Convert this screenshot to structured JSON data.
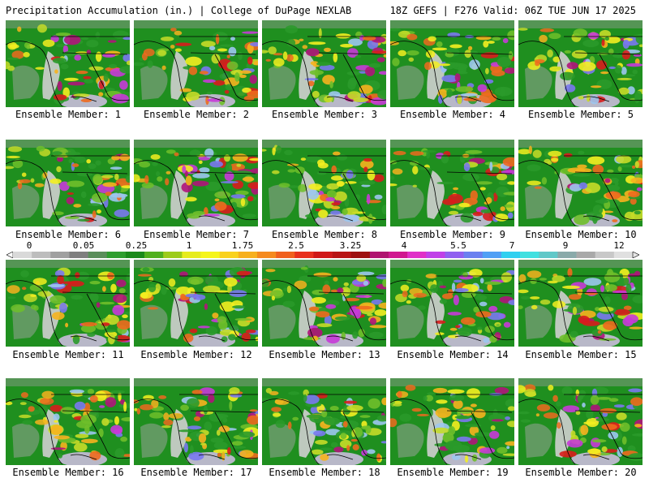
{
  "header": {
    "title": "Precipitation Accumulation (in.) | College of DuPage NEXLAB",
    "run_info": "18Z GEFS | F276 Valid: 06Z TUE JUN 17 2025"
  },
  "members": [
    "Ensemble Member: 1",
    "Ensemble Member: 2",
    "Ensemble Member: 3",
    "Ensemble Member: 4",
    "Ensemble Member: 5",
    "Ensemble Member: 6",
    "Ensemble Member: 7",
    "Ensemble Member: 8",
    "Ensemble Member: 9",
    "Ensemble Member: 10",
    "Ensemble Member: 11",
    "Ensemble Member: 12",
    "Ensemble Member: 13",
    "Ensemble Member: 14",
    "Ensemble Member: 15",
    "Ensemble Member: 16",
    "Ensemble Member: 17",
    "Ensemble Member: 18",
    "Ensemble Member: 19",
    "Ensemble Member: 20"
  ],
  "colorbar": {
    "labels": [
      "0",
      "0.05",
      "0.25",
      "1",
      "1.75",
      "2.5",
      "3.25",
      "4",
      "5.5",
      "7",
      "9",
      "12"
    ],
    "colors": [
      "#d9d9d9",
      "#bdbdbd",
      "#a0a0a0",
      "#7f7f7f",
      "#5a8f5a",
      "#2e9e2e",
      "#1a8a1a",
      "#50b01e",
      "#9ccc1a",
      "#e6ec1e",
      "#f5f51a",
      "#f9d21e",
      "#f7b01e",
      "#f58a1e",
      "#f0601e",
      "#e8301e",
      "#d01818",
      "#b81414",
      "#9e1010",
      "#b01470",
      "#d01890",
      "#e030c8",
      "#c040e8",
      "#9060f0",
      "#6a80f0",
      "#50a0f5",
      "#30d0f0",
      "#40e0e0",
      "#60c8c8",
      "#8aaaaa",
      "#a9a9a9",
      "#c8c8c8",
      "#e0e0e0"
    ]
  }
}
